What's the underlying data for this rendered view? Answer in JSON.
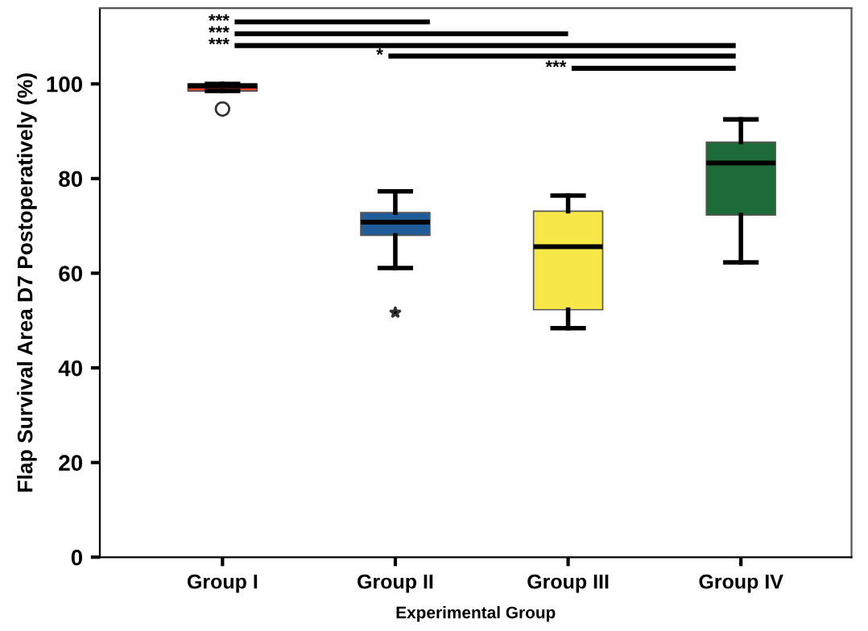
{
  "chart_data": {
    "type": "box",
    "xlabel": "Experimental Group",
    "ylabel": "Flap Survival Area D7 Postoperatively (%)",
    "categories": [
      "Group I",
      "Group II",
      "Group III",
      "Group IV"
    ],
    "colors": [
      "#e8402a",
      "#1f5c99",
      "#f7e848",
      "#1e6b3a"
    ],
    "boxes": [
      {
        "low": 98.5,
        "q1": 98.5,
        "median": 99.6,
        "q3": 100,
        "high": 100,
        "outliers": [
          94.7
        ]
      },
      {
        "low": 61.1,
        "q1": 68.0,
        "median": 70.8,
        "q3": 72.8,
        "high": 77.3,
        "outliers": [
          51.7
        ]
      },
      {
        "low": 48.4,
        "q1": 52.3,
        "median": 65.6,
        "q3": 73.1,
        "high": 76.4
      },
      {
        "low": 62.3,
        "q1": 72.3,
        "median": 83.3,
        "q3": 87.7,
        "high": 92.5
      }
    ],
    "ylim": [
      0,
      116
    ],
    "yticks": [
      0,
      20,
      40,
      60,
      80,
      100
    ],
    "grid": false,
    "annotations": [
      "***",
      "***",
      "***",
      "*",
      "***"
    ]
  }
}
